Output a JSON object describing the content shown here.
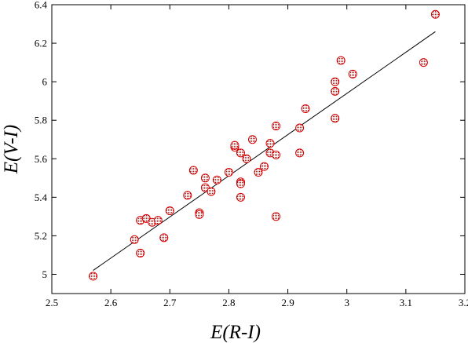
{
  "chart_data": {
    "type": "scatter",
    "xlabel": "E(R-I)",
    "ylabel": "E(V-I)",
    "xlim": [
      2.5,
      3.2
    ],
    "ylim": [
      4.9,
      6.4
    ],
    "x_ticks": [
      "2.5",
      "2.6",
      "2.7",
      "2.8",
      "2.9",
      "3",
      "3.1",
      "3.2"
    ],
    "y_ticks": [
      "5",
      "5.2",
      "5.4",
      "5.6",
      "5.8",
      "6",
      "6.2",
      "6.4"
    ],
    "x_tick_values": [
      2.5,
      2.6,
      2.7,
      2.8,
      2.9,
      3.0,
      3.1,
      3.2
    ],
    "y_tick_values": [
      5.0,
      5.2,
      5.4,
      5.6,
      5.8,
      6.0,
      6.2,
      6.4
    ],
    "grid": false,
    "marker_color": "#d40000",
    "line_color": "#000000",
    "points": [
      [
        2.57,
        4.99
      ],
      [
        2.64,
        5.18
      ],
      [
        2.65,
        5.11
      ],
      [
        2.65,
        5.28
      ],
      [
        2.66,
        5.29
      ],
      [
        2.67,
        5.27
      ],
      [
        2.68,
        5.28
      ],
      [
        2.69,
        5.19
      ],
      [
        2.7,
        5.33
      ],
      [
        2.73,
        5.41
      ],
      [
        2.74,
        5.54
      ],
      [
        2.75,
        5.32
      ],
      [
        2.75,
        5.31
      ],
      [
        2.76,
        5.45
      ],
      [
        2.76,
        5.5
      ],
      [
        2.77,
        5.43
      ],
      [
        2.78,
        5.49
      ],
      [
        2.8,
        5.53
      ],
      [
        2.81,
        5.66
      ],
      [
        2.81,
        5.67
      ],
      [
        2.82,
        5.63
      ],
      [
        2.82,
        5.48
      ],
      [
        2.82,
        5.47
      ],
      [
        2.82,
        5.4
      ],
      [
        2.83,
        5.6
      ],
      [
        2.84,
        5.7
      ],
      [
        2.85,
        5.53
      ],
      [
        2.86,
        5.56
      ],
      [
        2.87,
        5.68
      ],
      [
        2.87,
        5.63
      ],
      [
        2.88,
        5.62
      ],
      [
        2.88,
        5.77
      ],
      [
        2.88,
        5.3
      ],
      [
        2.92,
        5.76
      ],
      [
        2.92,
        5.63
      ],
      [
        2.93,
        5.86
      ],
      [
        2.98,
        6.0
      ],
      [
        2.98,
        5.95
      ],
      [
        2.98,
        5.81
      ],
      [
        2.99,
        6.11
      ],
      [
        3.01,
        6.04
      ],
      [
        3.13,
        6.1
      ],
      [
        3.15,
        6.35
      ]
    ],
    "fit_line": {
      "x": [
        2.57,
        3.15
      ],
      "y": [
        5.02,
        6.26
      ]
    }
  }
}
